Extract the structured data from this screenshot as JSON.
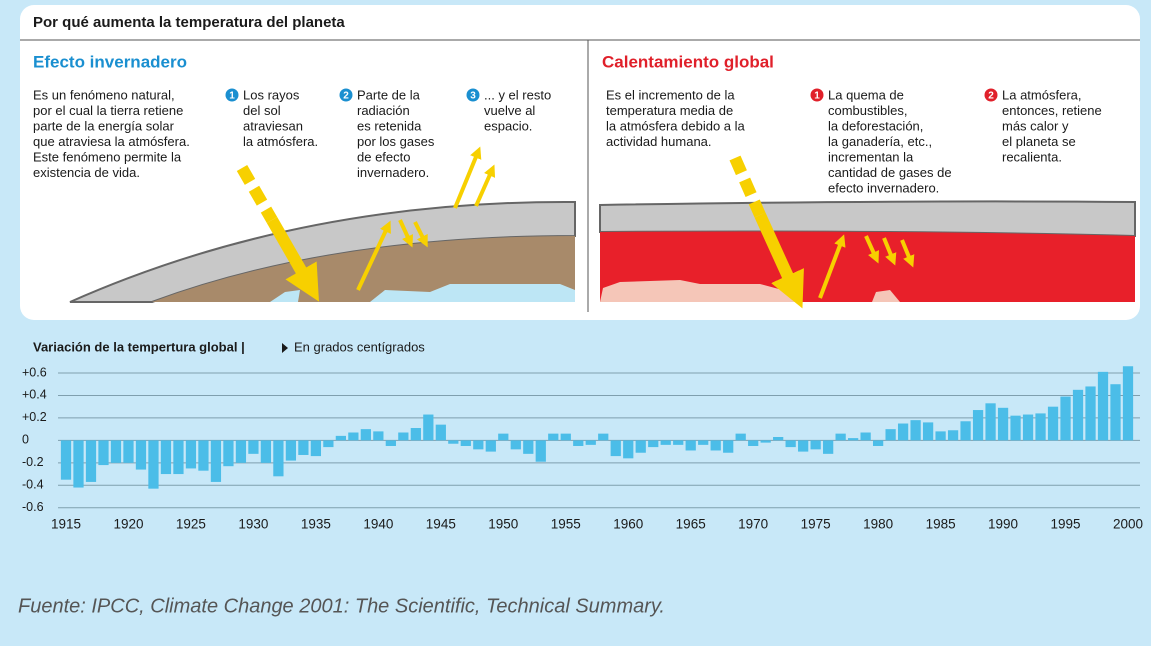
{
  "header": {
    "title": "Por qué aumenta la temperatura del planeta"
  },
  "panels": [
    {
      "heading": "Efecto invernadero",
      "intro": [
        "Es un fenómeno natural,",
        "por el cual la tierra retiene",
        "parte de la energía solar",
        "que atraviesa la atmósfera.",
        "Este fenómeno permite la",
        "existencia de vida."
      ],
      "steps": [
        {
          "number": 1,
          "lines": [
            "Los rayos",
            "del sol",
            "atraviesan",
            "la atmósfera."
          ]
        },
        {
          "number": 2,
          "lines": [
            "Parte de la",
            "radiación",
            "es retenida",
            "por los gases",
            "de efecto",
            "invernadero."
          ]
        },
        {
          "number": 3,
          "lines": [
            "... y el resto",
            "vuelve al",
            "espacio."
          ]
        }
      ]
    },
    {
      "heading": "Calentamiento global",
      "intro": [
        "Es el incremento de la",
        "temperatura media de",
        "la atmósfera debido a la",
        "actividad humana."
      ],
      "steps": [
        {
          "number": 1,
          "lines": [
            "La quema de",
            "combustibles,",
            "la deforestación,",
            "la ganadería, etc.,",
            "incrementan la",
            "cantidad de gases de",
            "efecto invernadero."
          ]
        },
        {
          "number": 2,
          "lines": [
            "La atmósfera,",
            "entonces, retiene",
            "más calor y",
            "el planeta se",
            "recalienta."
          ]
        }
      ]
    }
  ],
  "chart_data": {
    "type": "bar",
    "title": "Variación de la tempertura global |",
    "subtitle": "En grados centígrados",
    "color": "#4bbde8",
    "x": [
      1915,
      1916,
      1917,
      1918,
      1919,
      1920,
      1921,
      1922,
      1923,
      1924,
      1925,
      1926,
      1927,
      1928,
      1929,
      1930,
      1931,
      1932,
      1933,
      1934,
      1935,
      1936,
      1937,
      1938,
      1939,
      1940,
      1941,
      1942,
      1943,
      1944,
      1945,
      1946,
      1947,
      1948,
      1949,
      1950,
      1951,
      1952,
      1953,
      1954,
      1955,
      1956,
      1957,
      1958,
      1959,
      1960,
      1961,
      1962,
      1963,
      1964,
      1965,
      1966,
      1967,
      1968,
      1969,
      1970,
      1971,
      1972,
      1973,
      1974,
      1975,
      1976,
      1977,
      1978,
      1979,
      1980,
      1981,
      1982,
      1983,
      1984,
      1985,
      1986,
      1987,
      1988,
      1989,
      1990,
      1991,
      1992,
      1993,
      1994,
      1995,
      1996,
      1997,
      1998,
      1999,
      2000
    ],
    "values": [
      -0.35,
      -0.42,
      -0.37,
      -0.22,
      -0.2,
      -0.2,
      -0.26,
      -0.43,
      -0.3,
      -0.3,
      -0.25,
      -0.27,
      -0.37,
      -0.23,
      -0.2,
      -0.12,
      -0.2,
      -0.32,
      -0.18,
      -0.13,
      -0.14,
      -0.06,
      0.04,
      0.07,
      0.1,
      0.08,
      -0.05,
      0.07,
      0.11,
      0.23,
      0.14,
      -0.03,
      -0.05,
      -0.08,
      -0.1,
      0.06,
      -0.08,
      -0.12,
      -0.19,
      0.06,
      0.06,
      -0.05,
      -0.04,
      0.06,
      -0.14,
      -0.16,
      -0.11,
      -0.06,
      -0.04,
      -0.04,
      -0.09,
      -0.04,
      -0.09,
      -0.11,
      0.06,
      -0.05,
      -0.02,
      0.03,
      -0.06,
      -0.1,
      -0.08,
      -0.12,
      0.06,
      0.02,
      0.07,
      -0.05,
      0.1,
      0.15,
      0.18,
      0.16,
      0.08,
      0.09,
      0.17,
      0.27,
      0.33,
      0.29,
      0.22,
      0.23,
      0.24,
      0.3,
      0.39,
      0.45,
      0.48,
      0.61,
      0.5,
      0.66
    ],
    "xlim": [
      1915,
      2000
    ],
    "xticks": [
      1915,
      1920,
      1925,
      1930,
      1935,
      1940,
      1945,
      1950,
      1955,
      1960,
      1965,
      1970,
      1975,
      1980,
      1985,
      1990,
      1995,
      2000
    ],
    "ylim": [
      -0.62,
      0.68
    ],
    "yticks": [
      {
        "value": 0.6,
        "label": "+0.6"
      },
      {
        "value": 0.4,
        "label": "+0.4"
      },
      {
        "value": 0.2,
        "label": "+0.2"
      },
      0,
      -0.2,
      -0.4,
      -0.6
    ],
    "grid": true
  },
  "source": "Fuente: IPCC, Climate Change 2001: The Scientific, Technical Summary."
}
